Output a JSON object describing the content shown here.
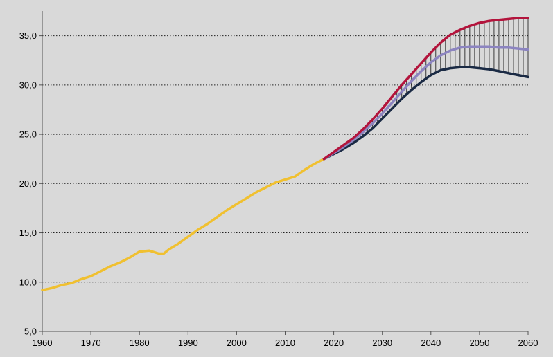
{
  "chart_data": {
    "type": "line",
    "title": "",
    "xlabel": "",
    "ylabel": "",
    "xlim": [
      1960,
      2060
    ],
    "ylim": [
      5,
      37.5
    ],
    "x_ticks": [
      1960,
      1970,
      1980,
      1990,
      2000,
      2010,
      2020,
      2030,
      2040,
      2050,
      2060
    ],
    "y_ticks": [
      5,
      10,
      15,
      20,
      25,
      30,
      35
    ],
    "x_tick_labels": [
      "1960",
      "1970",
      "1980",
      "1990",
      "2000",
      "2010",
      "2020",
      "2030",
      "2040",
      "2050",
      "2060"
    ],
    "y_tick_labels": [
      "5,0",
      "10,0",
      "15,0",
      "20,0",
      "25,0",
      "30,0",
      "35,0"
    ],
    "grid": "horizontal dotted",
    "legend": "none",
    "band": {
      "between": [
        "high",
        "low"
      ],
      "style": "vertical hatching"
    },
    "series": [
      {
        "key": "observed",
        "color": "#f0c030",
        "points": [
          [
            1960,
            9.2
          ],
          [
            1962,
            9.4
          ],
          [
            1964,
            9.7
          ],
          [
            1966,
            9.9
          ],
          [
            1968,
            10.3
          ],
          [
            1970,
            10.6
          ],
          [
            1972,
            11.1
          ],
          [
            1974,
            11.6
          ],
          [
            1976,
            12.0
          ],
          [
            1978,
            12.5
          ],
          [
            1980,
            13.1
          ],
          [
            1982,
            13.2
          ],
          [
            1984,
            12.9
          ],
          [
            1985,
            12.9
          ],
          [
            1986,
            13.3
          ],
          [
            1988,
            13.9
          ],
          [
            1990,
            14.6
          ],
          [
            1992,
            15.3
          ],
          [
            1994,
            15.9
          ],
          [
            1996,
            16.6
          ],
          [
            1998,
            17.3
          ],
          [
            2000,
            17.9
          ],
          [
            2002,
            18.5
          ],
          [
            2004,
            19.1
          ],
          [
            2006,
            19.6
          ],
          [
            2008,
            20.1
          ],
          [
            2010,
            20.4
          ],
          [
            2012,
            20.7
          ],
          [
            2014,
            21.4
          ],
          [
            2016,
            22.0
          ],
          [
            2018,
            22.5
          ]
        ]
      },
      {
        "key": "high",
        "color": "#b3143c",
        "points": [
          [
            2018,
            22.5
          ],
          [
            2020,
            23.2
          ],
          [
            2022,
            23.9
          ],
          [
            2024,
            24.6
          ],
          [
            2026,
            25.5
          ],
          [
            2028,
            26.5
          ],
          [
            2030,
            27.6
          ],
          [
            2032,
            28.8
          ],
          [
            2034,
            30.0
          ],
          [
            2036,
            31.1
          ],
          [
            2038,
            32.2
          ],
          [
            2040,
            33.3
          ],
          [
            2042,
            34.3
          ],
          [
            2044,
            35.1
          ],
          [
            2046,
            35.6
          ],
          [
            2048,
            36.0
          ],
          [
            2050,
            36.3
          ],
          [
            2052,
            36.5
          ],
          [
            2054,
            36.6
          ],
          [
            2056,
            36.7
          ],
          [
            2058,
            36.8
          ],
          [
            2060,
            36.8
          ]
        ]
      },
      {
        "key": "medium",
        "color": "#8c84c0",
        "points": [
          [
            2018,
            22.5
          ],
          [
            2020,
            23.1
          ],
          [
            2022,
            23.7
          ],
          [
            2024,
            24.4
          ],
          [
            2026,
            25.2
          ],
          [
            2028,
            26.1
          ],
          [
            2030,
            27.1
          ],
          [
            2032,
            28.2
          ],
          [
            2034,
            29.3
          ],
          [
            2036,
            30.4
          ],
          [
            2038,
            31.4
          ],
          [
            2040,
            32.3
          ],
          [
            2042,
            33.0
          ],
          [
            2044,
            33.5
          ],
          [
            2046,
            33.8
          ],
          [
            2048,
            33.9
          ],
          [
            2050,
            33.9
          ],
          [
            2052,
            33.9
          ],
          [
            2054,
            33.8
          ],
          [
            2056,
            33.8
          ],
          [
            2058,
            33.7
          ],
          [
            2060,
            33.6
          ]
        ]
      },
      {
        "key": "low",
        "color": "#1a2a44",
        "points": [
          [
            2018,
            22.5
          ],
          [
            2020,
            23.0
          ],
          [
            2022,
            23.5
          ],
          [
            2024,
            24.1
          ],
          [
            2026,
            24.8
          ],
          [
            2028,
            25.6
          ],
          [
            2030,
            26.6
          ],
          [
            2032,
            27.6
          ],
          [
            2034,
            28.6
          ],
          [
            2036,
            29.5
          ],
          [
            2038,
            30.3
          ],
          [
            2040,
            31.0
          ],
          [
            2042,
            31.5
          ],
          [
            2044,
            31.7
          ],
          [
            2046,
            31.8
          ],
          [
            2048,
            31.8
          ],
          [
            2050,
            31.7
          ],
          [
            2052,
            31.6
          ],
          [
            2054,
            31.4
          ],
          [
            2056,
            31.2
          ],
          [
            2058,
            31.0
          ],
          [
            2060,
            30.8
          ]
        ]
      }
    ]
  }
}
